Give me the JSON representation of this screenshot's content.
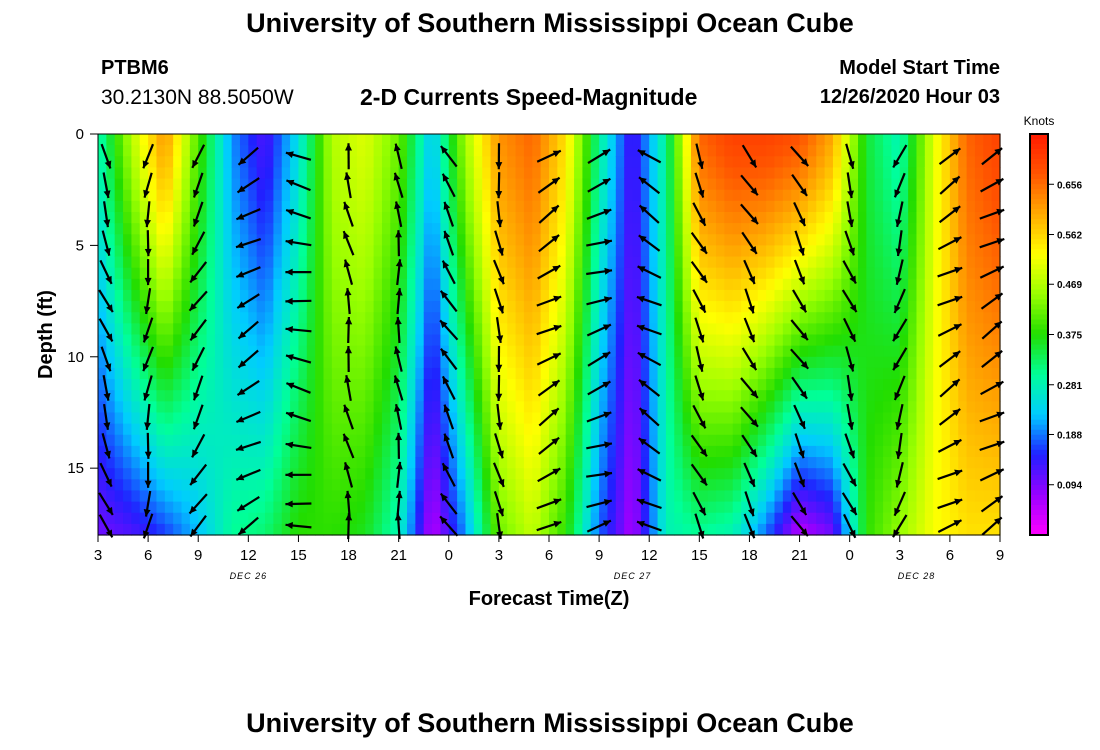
{
  "header": {
    "title": "University of Southern Mississippi Ocean Cube",
    "station_id": "PTBM6",
    "station_coords": "30.2130N 88.5050W",
    "plot_title": "2-D Currents Speed-Magnitude",
    "model_start_label": "Model Start Time",
    "model_start_value": "12/26/2020 Hour 03"
  },
  "footer": {
    "title": "University of Southern Mississippi Ocean Cube"
  },
  "chart_data": {
    "type": "heatmap",
    "title": "2-D Currents Speed-Magnitude",
    "xlabel": "Forecast Time(Z)",
    "ylabel": "Depth (ft)",
    "xlim": [
      0,
      54
    ],
    "ylim": [
      18,
      0
    ],
    "x_ticks": [
      {
        "t": 0,
        "label": "3"
      },
      {
        "t": 3,
        "label": "6"
      },
      {
        "t": 6,
        "label": "9"
      },
      {
        "t": 9,
        "label": "12"
      },
      {
        "t": 12,
        "label": "15"
      },
      {
        "t": 15,
        "label": "18"
      },
      {
        "t": 18,
        "label": "21"
      },
      {
        "t": 21,
        "label": "0"
      },
      {
        "t": 24,
        "label": "3"
      },
      {
        "t": 27,
        "label": "6"
      },
      {
        "t": 30,
        "label": "9"
      },
      {
        "t": 33,
        "label": "12"
      },
      {
        "t": 36,
        "label": "15"
      },
      {
        "t": 39,
        "label": "18"
      },
      {
        "t": 42,
        "label": "21"
      },
      {
        "t": 45,
        "label": "0"
      },
      {
        "t": 48,
        "label": "3"
      },
      {
        "t": 51,
        "label": "6"
      },
      {
        "t": 54,
        "label": "9"
      }
    ],
    "date_labels": [
      {
        "t": 9,
        "label": "DEC 26"
      },
      {
        "t": 32,
        "label": "DEC 27"
      },
      {
        "t": 49,
        "label": "DEC 28"
      }
    ],
    "y_ticks": [
      0,
      5,
      10,
      15
    ],
    "colorbar": {
      "title": "Knots",
      "ticks": [
        0.094,
        0.188,
        0.281,
        0.375,
        0.469,
        0.562,
        0.656
      ],
      "min": 0.0,
      "max": 0.75,
      "colors": [
        "#ff00ff",
        "#9900ff",
        "#2020ff",
        "#00ccff",
        "#00ff99",
        "#22dd00",
        "#99ff00",
        "#ffff00",
        "#ffaa00",
        "#ff5500",
        "#ff1a00"
      ]
    },
    "speed_profile": {
      "description": "Surface speed (knots) at each forecast hour index; deep layers are modeled from this profile",
      "times": [
        0,
        2,
        4,
        6,
        8,
        10,
        12,
        14,
        16,
        18,
        20,
        22,
        24,
        26,
        28,
        30,
        32,
        34,
        36,
        38,
        40,
        42,
        44,
        46,
        48,
        50,
        52,
        54
      ],
      "surface": [
        0.28,
        0.47,
        0.62,
        0.4,
        0.2,
        0.12,
        0.25,
        0.47,
        0.5,
        0.42,
        0.22,
        0.46,
        0.62,
        0.66,
        0.55,
        0.3,
        0.12,
        0.3,
        0.66,
        0.7,
        0.7,
        0.68,
        0.6,
        0.35,
        0.28,
        0.5,
        0.66,
        0.7
      ],
      "bottom": [
        0.1,
        0.12,
        0.16,
        0.22,
        0.3,
        0.32,
        0.38,
        0.38,
        0.36,
        0.28,
        0.05,
        0.2,
        0.42,
        0.48,
        0.38,
        0.18,
        0.06,
        0.28,
        0.3,
        0.28,
        0.18,
        0.05,
        0.1,
        0.38,
        0.45,
        0.52,
        0.55,
        0.55
      ]
    },
    "vectors": {
      "description": "Current direction in degrees (0=up/north, clockwise) per forecast hour column",
      "times": [
        0,
        3,
        6,
        9,
        12,
        15,
        18,
        21,
        24,
        27,
        30,
        33,
        36,
        39,
        42,
        45,
        48,
        51,
        54
      ],
      "direction_deg": [
        160,
        190,
        210,
        240,
        280,
        350,
        355,
        330,
        170,
        60,
        70,
        300,
        155,
        150,
        150,
        160,
        200,
        60,
        60
      ]
    }
  }
}
